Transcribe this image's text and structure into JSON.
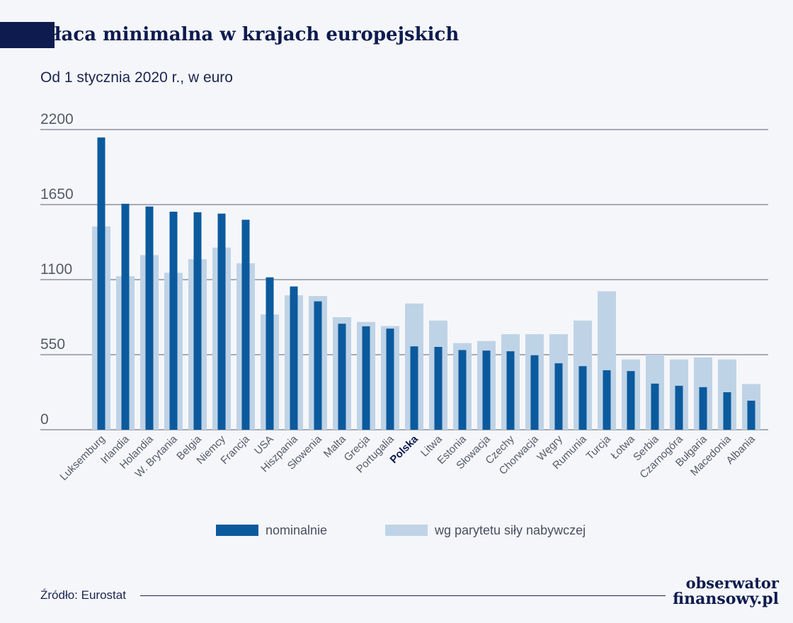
{
  "title": "Płaca minimalna w krajach europejskich",
  "subtitle": "Od 1 stycznia 2020 r., w euro",
  "source": "Źródło: Eurostat",
  "logo": {
    "line1": "obserwator",
    "line2": "finansowy.pl"
  },
  "colors": {
    "nominal": "#0b5a9e",
    "ppp": "#bfd3e6",
    "highlight_label": "#0d1b4f",
    "tick_label": "#555a68",
    "grid": "#5a5f70"
  },
  "chart_data": {
    "type": "bar",
    "title": "Płaca minimalna w krajach europejskich",
    "subtitle": "Od 1 stycznia 2020 r., w euro",
    "ylim": [
      0,
      2200
    ],
    "yticks": [
      "0",
      "550",
      "1100",
      "1650",
      "2200"
    ],
    "ytick_values": [
      0,
      550,
      1100,
      1650,
      2200
    ],
    "grid": true,
    "legend_position": "bottom",
    "highlight_category": "Polska",
    "categories": [
      "Luksemburg",
      "Irlandia",
      "Holandia",
      "W. Brytania",
      "Belgia",
      "Niemcy",
      "Francja",
      "USA",
      "Hiszpania",
      "Słowenia",
      "Malta",
      "Grecja",
      "Portugalia",
      "Polska",
      "Litwa",
      "Estonia",
      "Słowacja",
      "Czechy",
      "Chorwacja",
      "Węgry",
      "Rumunia",
      "Turcja",
      "Łotwa",
      "Serbia",
      "Czarnogóra",
      "Bułgaria",
      "Macedonia",
      "Albania"
    ],
    "series": [
      {
        "name": "nominalnie",
        "values": [
          2142,
          1656,
          1636,
          1598,
          1594,
          1584,
          1539,
          1117,
          1050,
          941,
          777,
          758,
          741,
          611,
          607,
          584,
          580,
          575,
          546,
          487,
          466,
          436,
          430,
          338,
          322,
          312,
          275,
          213
        ]
      },
      {
        "name": "wg parytetu siły nabywczej",
        "values": [
          1490,
          1125,
          1280,
          1150,
          1250,
          1335,
          1220,
          845,
          985,
          980,
          825,
          790,
          760,
          925,
          800,
          635,
          650,
          700,
          700,
          700,
          800,
          1015,
          515,
          550,
          515,
          530,
          515,
          335
        ]
      }
    ]
  }
}
